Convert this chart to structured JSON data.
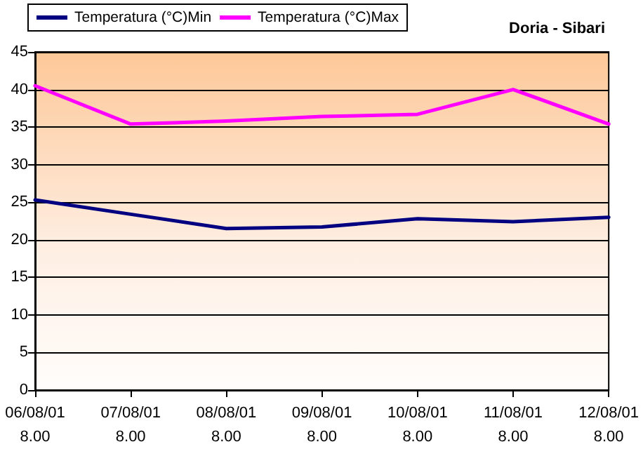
{
  "chart_data": {
    "type": "line",
    "title": "Doria - Sibari",
    "categories": [
      "06/08/01\n8.00",
      "07/08/01\n8.00",
      "08/08/01\n8.00",
      "09/08/01\n8.00",
      "10/08/01\n8.00",
      "11/08/01\n8.00",
      "12/08/01\n8.00"
    ],
    "series": [
      {
        "name": "Temperatura (°C)Min",
        "color": "#000080",
        "values": [
          25.3,
          23.4,
          21.5,
          21.7,
          22.8,
          22.4,
          23.0
        ]
      },
      {
        "name": "Temperatura (°C)Max",
        "color": "#ff00ff",
        "values": [
          40.5,
          35.4,
          35.8,
          36.4,
          36.7,
          40.0,
          35.4
        ]
      }
    ],
    "ylim": [
      0,
      45
    ],
    "yticks": [
      0,
      5,
      10,
      15,
      20,
      25,
      30,
      35,
      40,
      45
    ],
    "grid": "y",
    "legend": "top left",
    "marker": "none",
    "line_style": "solid"
  }
}
